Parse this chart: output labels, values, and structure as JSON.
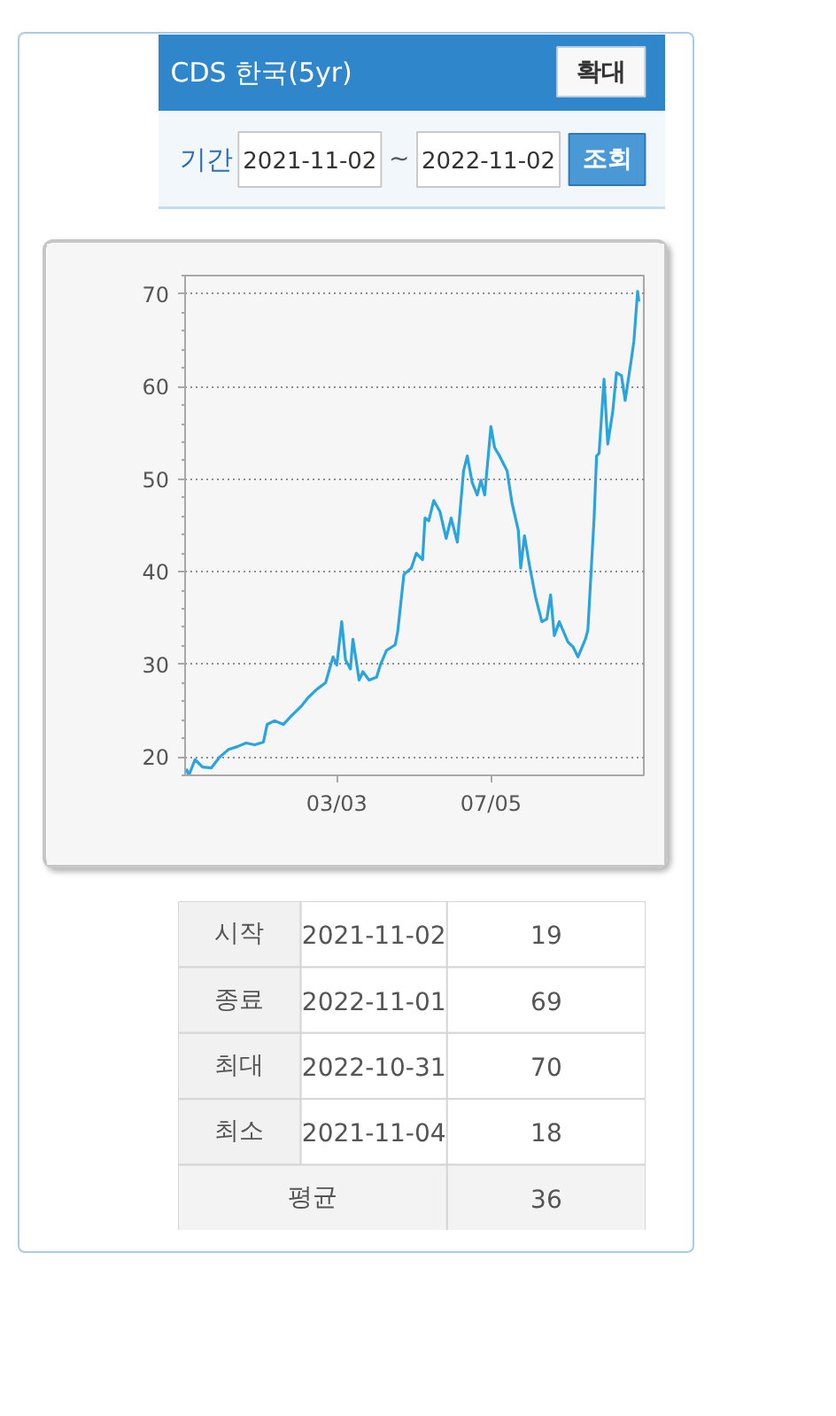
{
  "chart_data": {
    "type": "line",
    "title": "CDS 한국(5yr)",
    "x": [
      "2021-11-02",
      "2021-11-04",
      "2021-11-09",
      "2021-11-15",
      "2021-11-22",
      "2021-11-29",
      "2021-12-06",
      "2021-12-13",
      "2021-12-20",
      "2021-12-27",
      "2022-01-03",
      "2022-01-06",
      "2022-01-12",
      "2022-01-19",
      "2022-01-26",
      "2022-02-02",
      "2022-02-08",
      "2022-02-15",
      "2022-02-22",
      "2022-02-28",
      "2022-03-03",
      "2022-03-07",
      "2022-03-10",
      "2022-03-14",
      "2022-03-16",
      "2022-03-21",
      "2022-03-24",
      "2022-03-29",
      "2022-04-04",
      "2022-04-07",
      "2022-04-12",
      "2022-04-19",
      "2022-04-21",
      "2022-04-26",
      "2022-05-02",
      "2022-05-06",
      "2022-05-11",
      "2022-05-13",
      "2022-05-16",
      "2022-05-20",
      "2022-05-25",
      "2022-05-30",
      "2022-06-03",
      "2022-06-08",
      "2022-06-13",
      "2022-06-16",
      "2022-06-20",
      "2022-06-24",
      "2022-06-27",
      "2022-06-30",
      "2022-07-05",
      "2022-07-08",
      "2022-07-12",
      "2022-07-18",
      "2022-07-22",
      "2022-07-27",
      "2022-07-29",
      "2022-08-01",
      "2022-08-05",
      "2022-08-10",
      "2022-08-15",
      "2022-08-19",
      "2022-08-22",
      "2022-08-25",
      "2022-08-29",
      "2022-09-05",
      "2022-09-09",
      "2022-09-13",
      "2022-09-19",
      "2022-09-21",
      "2022-09-26",
      "2022-09-28",
      "2022-09-30",
      "2022-10-04",
      "2022-10-07",
      "2022-10-11",
      "2022-10-14",
      "2022-10-18",
      "2022-10-21",
      "2022-10-26",
      "2022-10-28",
      "2022-10-31",
      "2022-11-01"
    ],
    "series": [
      {
        "color": "#2aa5dc",
        "values": [
          18.7,
          18.0,
          19.7,
          18.9,
          18.8,
          20.0,
          20.8,
          21.1,
          21.5,
          21.3,
          21.6,
          23.5,
          23.9,
          23.5,
          24.5,
          25.4,
          26.4,
          27.3,
          28.0,
          30.8,
          29.9,
          34.6,
          30.5,
          29.5,
          32.7,
          28.3,
          29.2,
          28.3,
          28.6,
          29.9,
          31.5,
          32.1,
          33.5,
          39.7,
          40.4,
          42.0,
          41.3,
          45.8,
          45.5,
          47.7,
          46.5,
          43.6,
          45.8,
          43.2,
          50.9,
          52.5,
          49.6,
          48.3,
          49.9,
          48.3,
          55.7,
          53.4,
          52.5,
          50.9,
          47.4,
          44.5,
          40.4,
          43.9,
          40.7,
          37.2,
          34.6,
          34.9,
          37.5,
          33.1,
          34.6,
          32.4,
          31.9,
          30.8,
          32.7,
          33.7,
          45.8,
          52.5,
          52.8,
          60.8,
          53.8,
          57.3,
          61.5,
          61.2,
          58.5,
          63.0,
          64.9,
          70.3,
          69.2
        ]
      }
    ],
    "xlim": [
      "2021-11-01",
      "2022-11-05"
    ],
    "xticks": [
      {
        "value": "2022-03-03",
        "label": "03/03"
      },
      {
        "value": "2022-07-05",
        "label": "07/05"
      }
    ],
    "ylim": [
      18,
      72
    ],
    "yticks": [
      20,
      30,
      40,
      50,
      60,
      70
    ],
    "grid": "y",
    "line_style": "solid",
    "annotations": [
      "확대",
      "기간",
      "2021-11-02",
      "~",
      "2022-11-02",
      "조회",
      "시작",
      "2021-11-02",
      "19",
      "종료",
      "2022-11-01",
      "69",
      "최대",
      "2022-10-31",
      "70",
      "최소",
      "2021-11-04",
      "18",
      "평균",
      "36"
    ]
  }
}
